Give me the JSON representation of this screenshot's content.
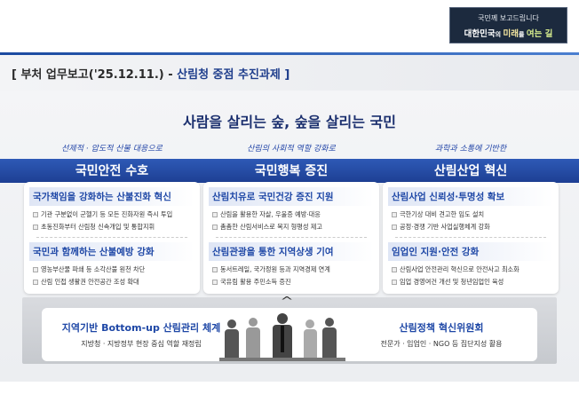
{
  "badge": {
    "line1": "국민께 보고드립니다",
    "line2_a": "대한민국",
    "line2_b": "의 ",
    "line2_c": "미래",
    "line2_d": "를 ",
    "line2_e": "여는 길"
  },
  "title": {
    "prefix": "[ 부처 업무보고('25.12.11.) - ",
    "accent": "산림청 중점 추진과제 ]"
  },
  "headline": "사람을 살리는 숲, 숲을 살리는 국민",
  "columns": [
    {
      "subtitle": "선제적 · 압도적 산불 대응으로",
      "title": "국민안전 수호",
      "sections": [
        {
          "heading": "국가책임을 강화하는 산불진화 혁신",
          "items": [
            "기관 구분없이 군헬기 등 모든 진화자원 즉시 투입",
            "초동진화부터 산림청 신속개입 및 통합지휘"
          ]
        },
        {
          "heading": "국민과 함께하는 산불예방 강화",
          "items": [
            "영농부산물 파쇄 등 소각산불 원천 차단",
            "산림 인접 생활권 안전공간 조성 확대"
          ]
        }
      ]
    },
    {
      "subtitle": "산림의 사회적 역할 강화로",
      "title": "국민행복 증진",
      "sections": [
        {
          "heading": "산림치유로 국민건강 증진 지원",
          "items": [
            "산림을 활용한 자살, 우울증 예방·대응",
            "촘촘한 산림서비스로 복지 형평성 제고"
          ]
        },
        {
          "heading": "산림관광을 통한 지역상생 기여",
          "items": [
            "동서트레일, 국가정원 등과 지역경제 연계",
            "국유림 활용 주민소득 증진"
          ]
        }
      ]
    },
    {
      "subtitle": "과학과 소통에 기반한",
      "title": "산림산업 혁신",
      "sections": [
        {
          "heading": "산림사업 신뢰성·투명성 확보",
          "items": [
            "극한기상 대비 견고한 임도 설치",
            "공정·경쟁 기반 사업실행체계 강화"
          ]
        },
        {
          "heading": "임업인 지원·안전 강화",
          "items": [
            "산림사업 안전관리 혁신으로 안전사고 최소화",
            "임업 경영여건 개선 및 청년임업인 육성"
          ]
        }
      ]
    }
  ],
  "bottom": {
    "left_title": "지역기반 Bottom-up 산림관리 체계",
    "left_sub": "지방청 · 지방정부 현장 중심 역할 재정립",
    "right_title": "산림정책 혁신위원회",
    "right_sub": "전문가 · 임업인 · NGO 등 집단지성 활용"
  },
  "colors": {
    "accent": "#1e47a6",
    "band": "#2448a0",
    "badge_bg": "#1c2a3e"
  }
}
